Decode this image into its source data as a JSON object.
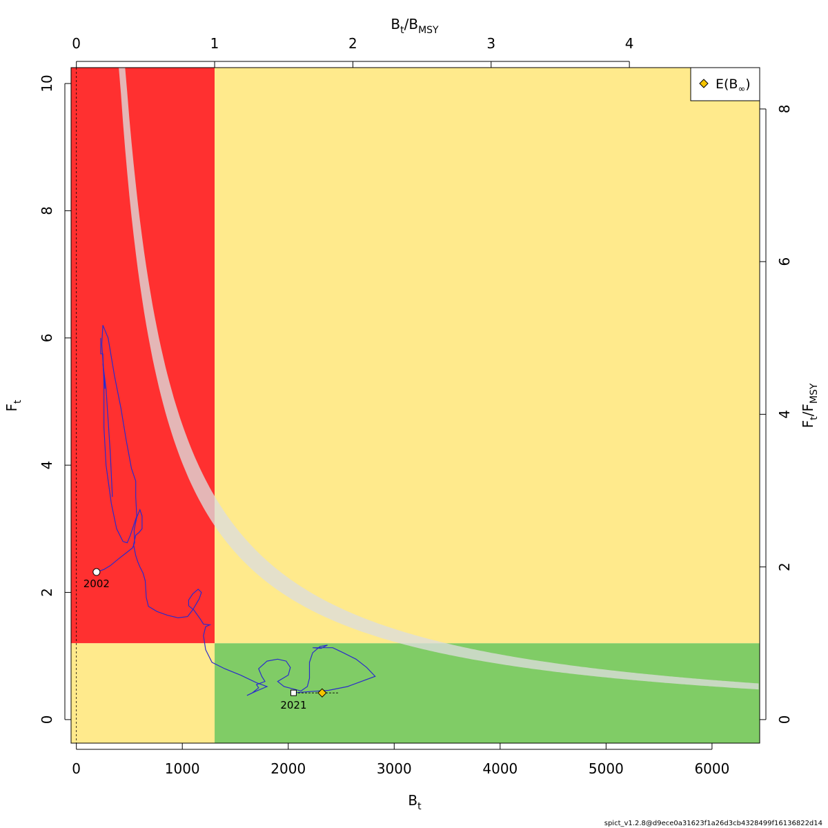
{
  "chart_data": {
    "type": "scatter",
    "title": "",
    "xlabel": "B",
    "xlabel_sub": "t",
    "ylabel": "F",
    "ylabel_sub": "t",
    "top_axis_label": {
      "a": "B",
      "a_sub": "t",
      "sep": "/",
      "b": "B",
      "b_sub": "MSY"
    },
    "right_axis_label": {
      "a": "F",
      "a_sub": "t",
      "sep": "/",
      "b": "F",
      "b_sub": "MSY"
    },
    "xlim": [
      -50,
      6450
    ],
    "ylim": [
      -0.37,
      10.25
    ],
    "x_ticks": [
      "0",
      "1000",
      "2000",
      "3000",
      "4000",
      "5000",
      "6000"
    ],
    "y_ticks": [
      "0",
      "2",
      "4",
      "6",
      "8",
      "10"
    ],
    "top_ticks": [
      "0",
      "1",
      "2",
      "3",
      "4"
    ],
    "right_ticks": [
      "0",
      "2",
      "4",
      "6",
      "8"
    ],
    "Bmsy": 1305,
    "Fmsy": 1.2,
    "msy_band": {
      "c_lower": 1250,
      "c_upper": 1430
    },
    "zones": [
      {
        "name": "overfished-overfishing",
        "color": "#ff3030"
      },
      {
        "name": "yellow",
        "color": "#ffea8c"
      },
      {
        "name": "good",
        "color": "#80cc66"
      }
    ],
    "band_color": "#dcdcdc",
    "line_color": "#2a2acc",
    "trajectory": [
      [
        190,
        2.32
      ],
      [
        260,
        2.36
      ],
      [
        320,
        2.42
      ],
      [
        400,
        2.53
      ],
      [
        470,
        2.62
      ],
      [
        530,
        2.7
      ],
      [
        550,
        2.78
      ],
      [
        545,
        2.98
      ],
      [
        570,
        3.18
      ],
      [
        600,
        3.3
      ],
      [
        620,
        3.2
      ],
      [
        620,
        3.0
      ],
      [
        590,
        2.94
      ],
      [
        560,
        2.9
      ],
      [
        540,
        2.75
      ],
      [
        560,
        2.58
      ],
      [
        580,
        2.48
      ],
      [
        600,
        2.4
      ],
      [
        630,
        2.3
      ],
      [
        650,
        2.18
      ],
      [
        660,
        1.92
      ],
      [
        680,
        1.78
      ],
      [
        760,
        1.7
      ],
      [
        860,
        1.64
      ],
      [
        960,
        1.6
      ],
      [
        1050,
        1.62
      ],
      [
        1100,
        1.73
      ],
      [
        1160,
        1.9
      ],
      [
        1180,
        2.0
      ],
      [
        1150,
        2.05
      ],
      [
        1100,
        1.98
      ],
      [
        1060,
        1.88
      ],
      [
        1060,
        1.79
      ],
      [
        1110,
        1.72
      ],
      [
        1170,
        1.58
      ],
      [
        1200,
        1.5
      ],
      [
        1260,
        1.49
      ],
      [
        1220,
        1.46
      ],
      [
        1200,
        1.32
      ],
      [
        1220,
        1.1
      ],
      [
        1280,
        0.9
      ],
      [
        1400,
        0.8
      ],
      [
        1550,
        0.7
      ],
      [
        1700,
        0.58
      ],
      [
        1800,
        0.52
      ],
      [
        1700,
        0.45
      ],
      [
        1610,
        0.38
      ],
      [
        1660,
        0.42
      ],
      [
        1720,
        0.5
      ],
      [
        1700,
        0.55
      ],
      [
        1780,
        0.6
      ],
      [
        1750,
        0.68
      ],
      [
        1720,
        0.8
      ],
      [
        1800,
        0.92
      ],
      [
        1900,
        0.95
      ],
      [
        1980,
        0.92
      ],
      [
        2020,
        0.82
      ],
      [
        2000,
        0.7
      ],
      [
        1950,
        0.65
      ],
      [
        1900,
        0.6
      ],
      [
        1960,
        0.52
      ],
      [
        2050,
        0.48
      ],
      [
        2120,
        0.45
      ],
      [
        2180,
        0.52
      ],
      [
        2200,
        0.65
      ],
      [
        2200,
        0.9
      ],
      [
        2230,
        1.05
      ],
      [
        2300,
        1.15
      ],
      [
        2370,
        1.17
      ],
      [
        2310,
        1.12
      ],
      [
        2230,
        1.13
      ],
      [
        2420,
        1.13
      ],
      [
        2520,
        1.05
      ],
      [
        2640,
        0.95
      ],
      [
        2740,
        0.82
      ],
      [
        2820,
        0.68
      ],
      [
        2560,
        0.52
      ],
      [
        2380,
        0.46
      ],
      [
        2200,
        0.44
      ],
      [
        2050,
        0.42
      ]
    ],
    "start_point": {
      "label": "2002",
      "x": 190,
      "y": 2.32
    },
    "end_point": {
      "label": "2021",
      "x": 2050,
      "y": 0.42
    },
    "equilibrium_point": {
      "x": 2320,
      "y": 0.42,
      "ci": [
        2060,
        2480
      ]
    },
    "upper_loop_points": [
      [
        340,
        3.5
      ],
      [
        320,
        4.2
      ],
      [
        280,
        5.2
      ],
      [
        250,
        5.6
      ],
      [
        270,
        5.2
      ],
      [
        240,
        5.9
      ],
      [
        250,
        6.2
      ],
      [
        300,
        6.0
      ],
      [
        360,
        5.4
      ],
      [
        420,
        4.9
      ],
      [
        470,
        4.4
      ],
      [
        520,
        3.95
      ],
      [
        560,
        3.75
      ],
      [
        560,
        3.5
      ],
      [
        570,
        3.2
      ]
    ],
    "loop_back_points": [
      [
        570,
        3.2
      ],
      [
        540,
        3.05
      ],
      [
        510,
        2.9
      ],
      [
        480,
        2.78
      ],
      [
        440,
        2.8
      ],
      [
        380,
        3.0
      ],
      [
        330,
        3.4
      ],
      [
        280,
        4.0
      ],
      [
        260,
        4.6
      ],
      [
        260,
        5.3
      ],
      [
        250,
        5.75
      ],
      [
        230,
        5.75
      ],
      [
        230,
        6.0
      ]
    ],
    "legend": {
      "symbol": "diamond",
      "label_a": "E(B",
      "label_sub": "∞",
      "label_b": ")",
      "placement": "top-right"
    },
    "watermark": "spict_v1.2.8@d9ece0a31623f1a26d3cb4328499f16136822d14"
  }
}
